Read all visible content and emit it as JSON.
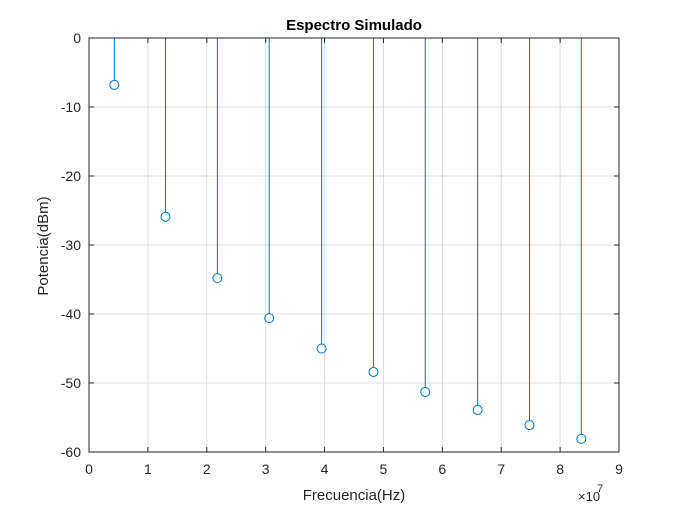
{
  "chart_data": {
    "type": "stem",
    "title": "Espectro Simulado",
    "xlabel": "Frecuencia(Hz)",
    "ylabel": "Potencia(dBm)",
    "x_exponent_label": "×10",
    "x_exponent_power": "7",
    "xlim": [
      0,
      9
    ],
    "ylim": [
      -60,
      0
    ],
    "x_ticks": [
      "0",
      "1",
      "2",
      "3",
      "4",
      "5",
      "6",
      "7",
      "8",
      "9"
    ],
    "y_ticks": [
      "0",
      "-10",
      "-20",
      "-30",
      "-40",
      "-50",
      "-60"
    ],
    "grid": true,
    "series": [
      {
        "x": [
          0.43,
          1.3,
          2.18,
          3.06,
          3.95,
          4.83,
          5.71,
          6.6,
          7.48,
          8.36
        ],
        "y": [
          -6.8,
          -25.9,
          -34.8,
          -40.6,
          -45.0,
          -48.4,
          -51.3,
          -53.9,
          -56.1,
          -58.1
        ]
      }
    ],
    "colors": {
      "series": "#0072bd",
      "grid": "#dcdcdc",
      "axis": "#262626"
    }
  }
}
